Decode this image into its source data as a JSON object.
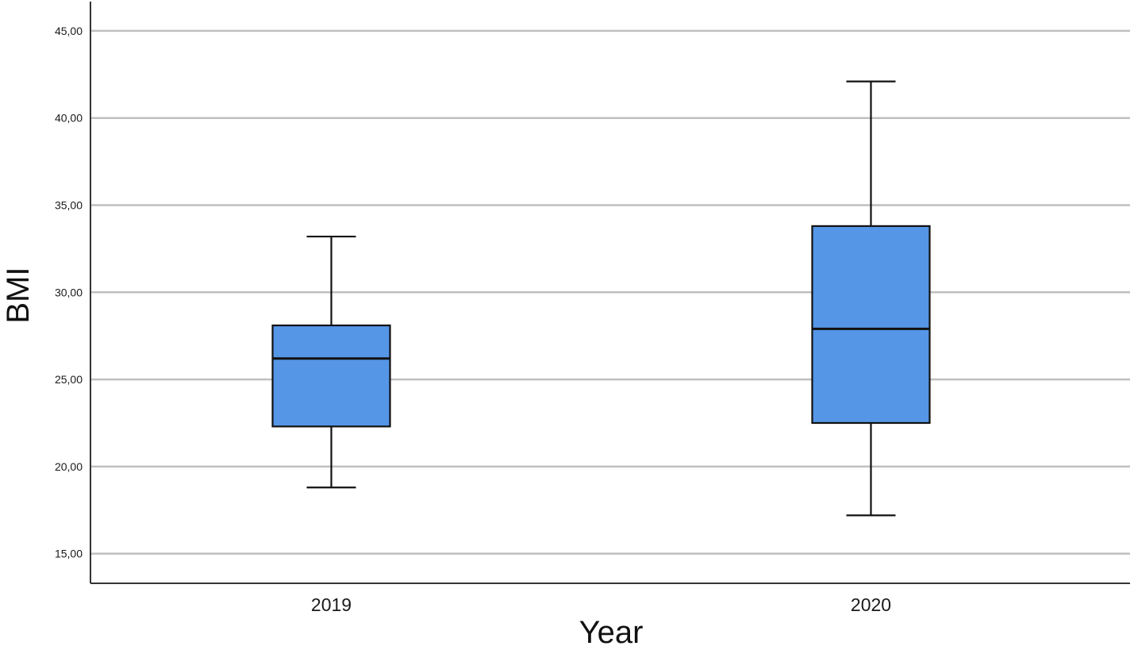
{
  "chart_data": {
    "type": "boxplot",
    "xlabel": "Year",
    "ylabel": "BMI",
    "ylim": [
      13.3,
      46.5
    ],
    "yticks": [
      15,
      20,
      25,
      30,
      35,
      40,
      45
    ],
    "ytick_labels": [
      "15,00",
      "20,00",
      "25,00",
      "30,00",
      "35,00",
      "40,00",
      "45,00"
    ],
    "grid": "horizontal",
    "categories": [
      "2019",
      "2020"
    ],
    "boxes": [
      {
        "category": "2019",
        "min": 18.8,
        "q1": 22.3,
        "median": 26.2,
        "q3": 28.1,
        "max": 33.2
      },
      {
        "category": "2020",
        "min": 17.2,
        "q1": 22.5,
        "median": 27.9,
        "q3": 33.8,
        "max": 42.1
      }
    ],
    "colors": {
      "box_fill": "#5596e6",
      "stroke": "#111111",
      "grid": "#bfbfbf",
      "axis": "#333333"
    }
  }
}
